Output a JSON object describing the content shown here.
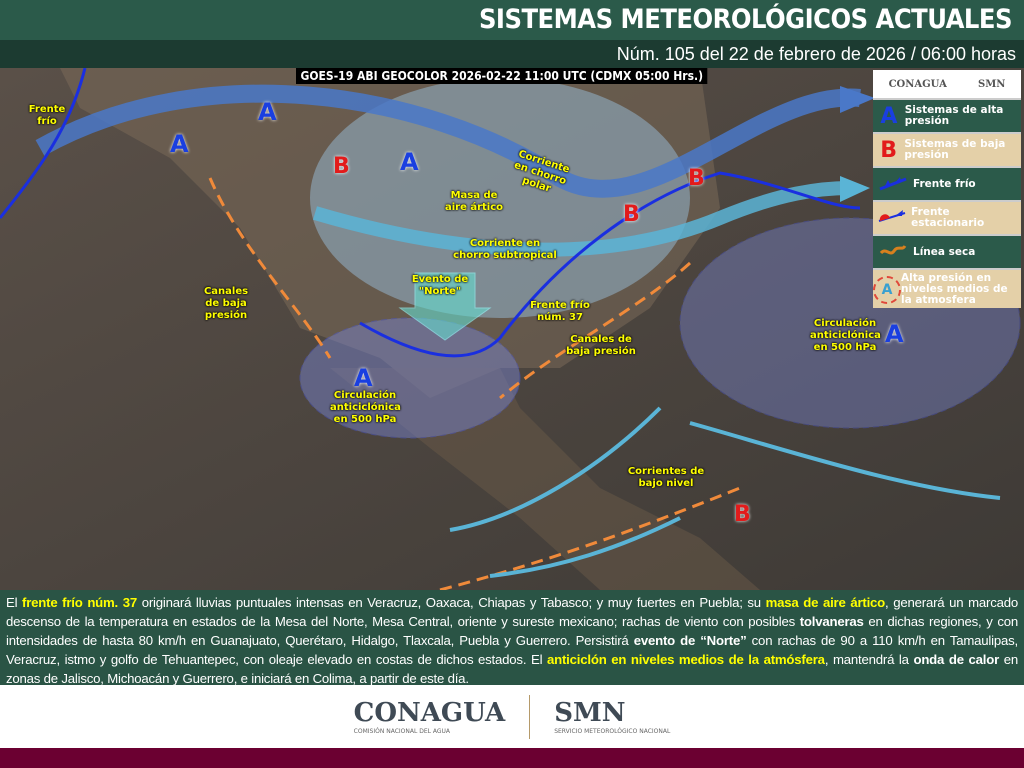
{
  "header": {
    "title": "SISTEMAS METEOROLÓGICOS ACTUALES",
    "subtitle": "Núm. 105 del 22 de febrero de 2026 / 06:00 horas"
  },
  "map": {
    "satellite_caption": "GOES-19 ABI GEOCOLOR 2026-02-22 11:00 UTC (CDMX  05:00 Hrs.)",
    "labels": {
      "frente_frio_nw": "Frente frío",
      "masa_aire": "Masa de aire ártico",
      "chorro_polar": "Corriente en chorro polar",
      "chorro_subtropical": "Corriente en chorro subtropical",
      "evento_norte": "Evento de \"Norte\"",
      "canales_w": "Canales de baja presión",
      "frente_37": "Frente frío núm. 37",
      "canales_e": "Canales de baja presión",
      "circ_w": "Circulación anticiclónica en 500 hPa",
      "circ_e": "Circulación anticiclónica en 500 hPa",
      "corrientes": "Corrientes de bajo nivel"
    },
    "high_symbol": "A",
    "low_symbol": "B",
    "colors": {
      "high": "#1a3fe0",
      "low": "#e21b1b",
      "cold_front": "#1a2fe0",
      "dry_line": "#f08a3a",
      "jet": "#4a78c8",
      "subtropical_jet": "#5ab4d6"
    }
  },
  "legend": {
    "logo_left": "CONAGUA",
    "logo_right": "SMN",
    "items": [
      {
        "symbol": "A",
        "label": "Sistemas de alta presión",
        "icon": "high-pressure-icon"
      },
      {
        "symbol": "B",
        "label": "Sistemas de baja presión",
        "icon": "low-pressure-icon"
      },
      {
        "label": "Frente frío",
        "icon": "cold-front-icon"
      },
      {
        "label": "Frente estacionario",
        "icon": "stationary-front-icon"
      },
      {
        "label": "Línea seca",
        "icon": "dry-line-icon"
      },
      {
        "symbol": "A",
        "label": "Alta presión en niveles medios de la atmosfera",
        "icon": "mid-level-high-icon"
      }
    ]
  },
  "description": [
    {
      "t": "El ",
      "s": ""
    },
    {
      "t": "frente frío núm. 37",
      "s": "y"
    },
    {
      "t": " originará lluvias puntuales intensas en Veracruz, Oaxaca, Chiapas y Tabasco; y muy fuertes en Puebla; su ",
      "s": ""
    },
    {
      "t": "masa de aire ártico",
      "s": "y"
    },
    {
      "t": ", generará un marcado descenso de la temperatura en estados de la Mesa del Norte, Mesa Central, oriente y sureste mexicano; rachas de viento con posibles ",
      "s": ""
    },
    {
      "t": "tolvaneras",
      "s": "b"
    },
    {
      "t": " en dichas regiones, y con intensidades de hasta 80 km/h en Guanajuato, Querétaro, Hidalgo, Tlaxcala, Puebla y Guerrero. Persistirá ",
      "s": ""
    },
    {
      "t": "evento de “Norte”",
      "s": "b"
    },
    {
      "t": " con rachas de 90 a 110 km/h en Tamaulipas, Veracruz, istmo y golfo de Tehuantepec, con oleaje elevado en costas de dichos estados. El ",
      "s": ""
    },
    {
      "t": "anticiclón en niveles medios de la atmósfera",
      "s": "y"
    },
    {
      "t": ", mantendrá la ",
      "s": ""
    },
    {
      "t": "onda de calor",
      "s": "b"
    },
    {
      "t": " en zonas de Jalisco, Michoacán y Guerrero, e iniciará en Colima, a partir de este día.",
      "s": ""
    }
  ],
  "footer_logos": {
    "conagua": "CONAGUA",
    "conagua_sub": "COMISIÓN NACIONAL DEL AGUA",
    "smn": "SMN",
    "smn_sub": "SERVICIO METEOROLÓGICO NACIONAL"
  }
}
